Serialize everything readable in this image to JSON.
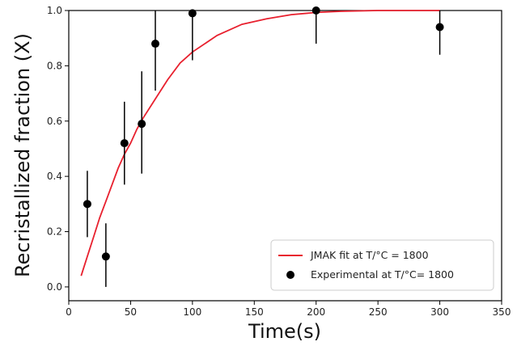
{
  "chart_data": {
    "type": "scatter",
    "title": "",
    "xlabel": "Time(s)",
    "ylabel": "Recristallized fraction (X)",
    "xlim": [
      0,
      350
    ],
    "ylim": [
      -0.05,
      1.0
    ],
    "xticks": [
      0,
      50,
      100,
      150,
      200,
      250,
      300,
      350
    ],
    "yticks": [
      0.0,
      0.2,
      0.4,
      0.6,
      0.8,
      1.0
    ],
    "xtick_labels": [
      "0",
      "50",
      "100",
      "150",
      "200",
      "250",
      "300",
      "350"
    ],
    "ytick_labels": [
      "0.0",
      "0.2",
      "0.4",
      "0.6",
      "0.8",
      "1.0"
    ],
    "grid": false,
    "legend_position": "lower-right",
    "series": [
      {
        "name": "JMAK fit at T/°C = 1800",
        "kind": "line",
        "color": "#e8202e",
        "x": [
          10,
          15,
          20,
          25,
          30,
          35,
          40,
          45,
          50,
          55,
          60,
          70,
          80,
          90,
          100,
          120,
          140,
          160,
          180,
          200,
          220,
          250,
          280,
          300
        ],
        "y": [
          0.04,
          0.11,
          0.18,
          0.25,
          0.31,
          0.37,
          0.43,
          0.48,
          0.52,
          0.57,
          0.61,
          0.68,
          0.75,
          0.81,
          0.85,
          0.91,
          0.95,
          0.97,
          0.985,
          0.993,
          0.997,
          1.0,
          1.0,
          1.0
        ]
      },
      {
        "name": "Experimental at T/°C= 1800",
        "kind": "scatter",
        "color": "#000000",
        "points": [
          {
            "x": 15,
            "y": 0.3,
            "err_low": 0.18,
            "err_high": 0.42
          },
          {
            "x": 30,
            "y": 0.11,
            "err_low": 0.0,
            "err_high": 0.23
          },
          {
            "x": 45,
            "y": 0.52,
            "err_low": 0.37,
            "err_high": 0.67
          },
          {
            "x": 59,
            "y": 0.59,
            "err_low": 0.41,
            "err_high": 0.78
          },
          {
            "x": 70,
            "y": 0.88,
            "err_low": 0.71,
            "err_high": 1.02
          },
          {
            "x": 100,
            "y": 0.99,
            "err_low": 0.82,
            "err_high": 1.02
          },
          {
            "x": 200,
            "y": 1.0,
            "err_low": 0.88,
            "err_high": 1.02
          },
          {
            "x": 300,
            "y": 0.94,
            "err_low": 0.84,
            "err_high": 1.02
          }
        ]
      }
    ]
  }
}
